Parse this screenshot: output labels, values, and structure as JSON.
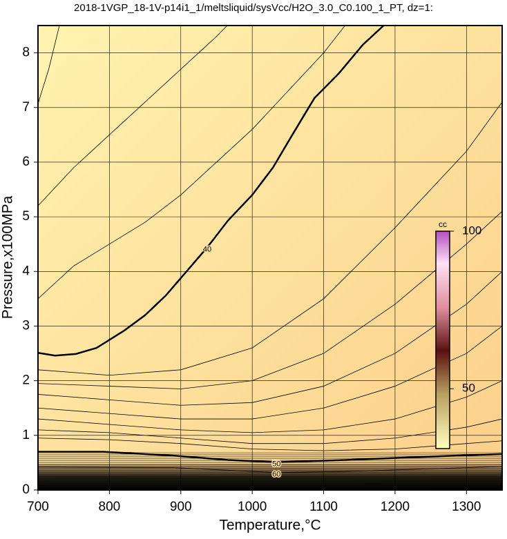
{
  "chart_data": {
    "type": "contour",
    "title": "2018-1VGP_18-1V-p14i1_1/meltsliquid/sysVcc/H2O_3.0_C0.100_1_PT, dz=1:",
    "x_label": "Temperature,°C",
    "y_label": "Pressure,x100MPa",
    "xlim": [
      700,
      1350
    ],
    "xticks": [
      700,
      800,
      900,
      1000,
      1100,
      1200,
      1300
    ],
    "ylim": [
      0,
      8.5
    ],
    "yticks": [
      0,
      1,
      2,
      3,
      4,
      5,
      6,
      7,
      8
    ],
    "grid": true,
    "contours": [
      {
        "level": 40,
        "bold": true,
        "x": [
          700,
          724,
          753,
          782,
          821,
          850,
          879,
          908,
          937,
          966,
          1000,
          1029,
          1058,
          1087,
          1121,
          1155,
          1184
        ],
        "y": [
          2.51,
          2.46,
          2.49,
          2.6,
          2.92,
          3.2,
          3.56,
          4.0,
          4.44,
          4.93,
          5.4,
          5.9,
          6.54,
          7.17,
          7.62,
          8.15,
          8.5
        ]
      },
      {
        "level": 50,
        "bold": true,
        "x": [
          700,
          792,
          889,
          966,
          1034,
          1131,
          1227,
          1350
        ],
        "y": [
          0.7,
          0.7,
          0.63,
          0.55,
          0.51,
          0.55,
          0.6,
          0.66
        ]
      },
      {
        "level": 60,
        "bold": false,
        "x": [
          700,
          889,
          1034,
          1131,
          1350
        ],
        "y": [
          0.42,
          0.41,
          0.32,
          0.34,
          0.43
        ]
      },
      {
        "x": [
          700,
          715,
          730
        ],
        "y": [
          7.07,
          7.7,
          8.5
        ]
      },
      {
        "x": [
          700,
          750,
          800,
          850,
          900,
          950,
          965
        ],
        "y": [
          5.2,
          5.9,
          6.5,
          7.1,
          7.7,
          8.3,
          8.5
        ]
      },
      {
        "x": [
          700,
          750,
          800,
          850,
          900,
          950,
          1000,
          1050,
          1100,
          1130
        ],
        "y": [
          3.5,
          4.1,
          4.5,
          4.9,
          5.4,
          6.0,
          6.6,
          7.3,
          8.0,
          8.5
        ]
      },
      {
        "x": [
          700,
          800,
          900,
          1000,
          1100,
          1200,
          1300,
          1350
        ],
        "y": [
          2.2,
          2.1,
          2.2,
          2.6,
          3.5,
          4.8,
          6.2,
          7.1
        ]
      },
      {
        "x": [
          700,
          800,
          900,
          1000,
          1100,
          1200,
          1300,
          1350
        ],
        "y": [
          1.95,
          1.9,
          1.85,
          2.0,
          2.5,
          3.4,
          4.5,
          5.1
        ]
      },
      {
        "x": [
          700,
          800,
          900,
          1000,
          1100,
          1200,
          1300,
          1350
        ],
        "y": [
          1.75,
          1.65,
          1.55,
          1.6,
          1.9,
          2.5,
          3.4,
          4.0
        ]
      },
      {
        "x": [
          700,
          800,
          900,
          1000,
          1100,
          1200,
          1300,
          1350
        ],
        "y": [
          1.5,
          1.4,
          1.3,
          1.3,
          1.5,
          1.9,
          2.5,
          3.0
        ]
      },
      {
        "x": [
          700,
          800,
          900,
          1000,
          1100,
          1200,
          1300,
          1350
        ],
        "y": [
          1.3,
          1.2,
          1.1,
          1.05,
          1.1,
          1.3,
          1.7,
          2.0
        ]
      },
      {
        "x": [
          700,
          800,
          900,
          1000,
          1100,
          1200,
          1300,
          1350
        ],
        "y": [
          1.1,
          1.05,
          0.95,
          0.85,
          0.85,
          0.95,
          1.15,
          1.3
        ]
      },
      {
        "x": [
          700,
          800,
          900,
          1000,
          1100,
          1200,
          1300,
          1350
        ],
        "y": [
          0.95,
          0.92,
          0.85,
          0.75,
          0.72,
          0.75,
          0.85,
          0.9
        ]
      }
    ],
    "colorbar": {
      "title": "cc",
      "lim": [
        31,
        100
      ],
      "ticks": [
        50,
        100
      ]
    }
  }
}
